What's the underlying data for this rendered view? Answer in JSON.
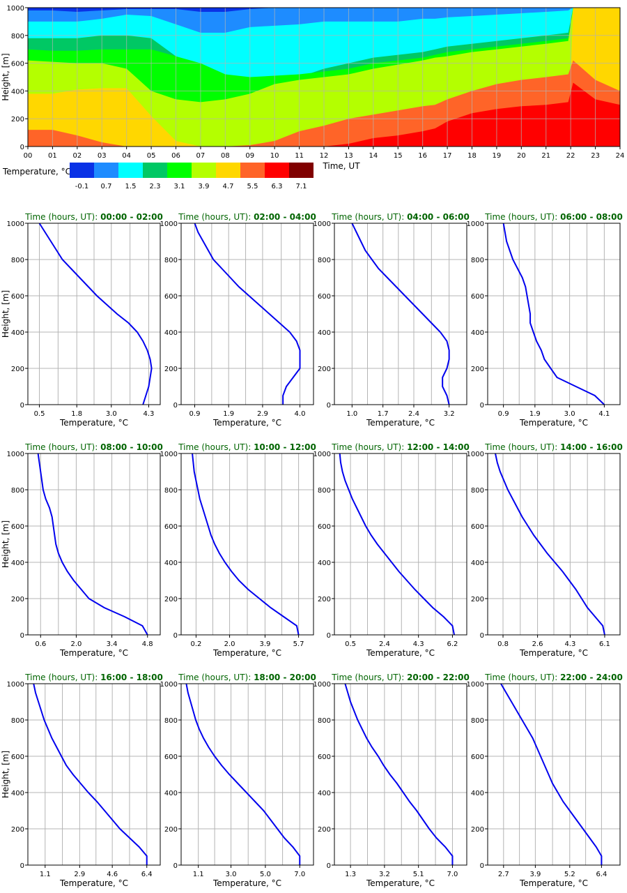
{
  "chart_data": [
    {
      "type": "heatmap",
      "title": "",
      "xlabel": "Time, UT",
      "ylabel": "Height, [m]",
      "xlim": [
        0,
        24
      ],
      "ylim": [
        0,
        1000
      ],
      "x_ticks": [
        "00",
        "01",
        "02",
        "03",
        "04",
        "05",
        "06",
        "07",
        "08",
        "09",
        "10",
        "11",
        "12",
        "13",
        "14",
        "15",
        "16",
        "17",
        "18",
        "19",
        "20",
        "21",
        "22",
        "23",
        "24"
      ],
      "y_ticks": [
        "0",
        "200",
        "400",
        "600",
        "800",
        "1000"
      ],
      "grid": true,
      "colorbar": {
        "label": "Temperature, °C",
        "tick_labels": [
          "-0.1",
          "0.7",
          "1.5",
          "2.3",
          "3.1",
          "3.9",
          "4.7",
          "5.5",
          "6.3",
          "7.1"
        ],
        "colors": [
          "#0a32e6",
          "#1e8cff",
          "#00ffff",
          "#00c864",
          "#00ff00",
          "#b4ff00",
          "#ffd700",
          "#ff6428",
          "#ff0000",
          "#800000"
        ]
      },
      "isotherm_heights_m": {
        "time_h": [
          0,
          1,
          2,
          3,
          4,
          5,
          6,
          7,
          8,
          9,
          10,
          11,
          12,
          13,
          14,
          15,
          16,
          16.5,
          17,
          18,
          19,
          20,
          21,
          21.9,
          22.1,
          23,
          24
        ],
        "t3_9": [
          380,
          380,
          410,
          420,
          420,
          220,
          40,
          0,
          0,
          0,
          0,
          0,
          0,
          0,
          0,
          0,
          0,
          0,
          0,
          0,
          0,
          0,
          0,
          0,
          1000,
          1000,
          1000
        ],
        "t4_7": [
          120,
          120,
          80,
          30,
          0,
          0,
          0,
          0,
          0,
          10,
          40,
          110,
          150,
          200,
          230,
          260,
          290,
          300,
          340,
          400,
          450,
          480,
          500,
          520,
          620,
          480,
          400
        ],
        "t5_5": [
          0,
          0,
          0,
          0,
          0,
          0,
          0,
          0,
          0,
          0,
          0,
          0,
          0,
          20,
          60,
          80,
          110,
          130,
          180,
          240,
          270,
          290,
          300,
          320,
          460,
          340,
          300
        ],
        "t6_3": [
          0,
          0,
          0,
          0,
          0,
          0,
          0,
          0,
          0,
          0,
          0,
          0,
          0,
          0,
          0,
          0,
          0,
          50,
          80,
          130,
          150,
          160,
          170,
          180,
          250,
          200,
          170
        ],
        "t3_1": [
          620,
          610,
          600,
          600,
          560,
          400,
          340,
          320,
          340,
          380,
          450,
          480,
          500,
          520,
          560,
          590,
          620,
          640,
          650,
          680,
          700,
          720,
          740,
          760,
          1000,
          1000,
          1000
        ],
        "t2_3": [
          700,
          690,
          690,
          700,
          700,
          700,
          650,
          600,
          520,
          500,
          510,
          520,
          540,
          560,
          600,
          620,
          640,
          660,
          680,
          700,
          720,
          740,
          760,
          780,
          1000,
          1000,
          1000
        ],
        "t1_5": [
          780,
          780,
          780,
          800,
          800,
          780,
          650,
          450,
          380,
          400,
          450,
          500,
          560,
          600,
          640,
          660,
          680,
          700,
          720,
          740,
          760,
          780,
          800,
          820,
          1000,
          1000,
          1000
        ],
        "t0_7": [
          900,
          900,
          900,
          920,
          950,
          940,
          880,
          820,
          820,
          860,
          870,
          880,
          900,
          900,
          900,
          900,
          920,
          920,
          930,
          940,
          950,
          960,
          970,
          980,
          1000,
          1000,
          1000
        ],
        "t_0_1": [
          980,
          980,
          970,
          980,
          990,
          990,
          990,
          970,
          970,
          990,
          1000,
          1000,
          1000,
          1000,
          1000,
          1000,
          1000,
          1000,
          1000,
          1000,
          1000,
          1000,
          1000,
          1000,
          1000,
          1000,
          1000
        ]
      }
    },
    {
      "type": "line",
      "title_prefix": "Time (hours, UT): ",
      "title_range": "00:00 - 02:00",
      "xlabel": "Temperature, °C",
      "ylabel": "Height, [m]",
      "xlim": [
        0.1,
        4.7
      ],
      "ylim": [
        0,
        1000
      ],
      "x_ticks": [
        "0.5",
        "1.8",
        "3.0",
        "4.3"
      ],
      "x_tick_values": [
        0.5,
        1.8,
        3.0,
        4.3
      ],
      "y_ticks": [
        "0",
        "200",
        "400",
        "600",
        "800",
        "1000"
      ],
      "height": [
        0,
        50,
        100,
        150,
        200,
        250,
        300,
        350,
        400,
        450,
        500,
        550,
        600,
        650,
        700,
        750,
        800,
        850,
        900,
        950,
        1000
      ],
      "temperature": [
        4.1,
        4.2,
        4.3,
        4.35,
        4.4,
        4.35,
        4.25,
        4.1,
        3.9,
        3.6,
        3.2,
        2.85,
        2.5,
        2.2,
        1.9,
        1.6,
        1.3,
        1.1,
        0.9,
        0.7,
        0.5
      ]
    },
    {
      "type": "line",
      "title_prefix": "Time (hours, UT): ",
      "title_range": "02:00 - 04:00",
      "xlabel": "Temperature, °C",
      "ylabel": "Height, [m]",
      "xlim": [
        0.5,
        4.4
      ],
      "ylim": [
        0,
        1000
      ],
      "x_ticks": [
        "0.9",
        "1.9",
        "2.9",
        "4.0"
      ],
      "x_tick_values": [
        0.9,
        1.9,
        2.9,
        4.0
      ],
      "y_ticks": [
        "0",
        "200",
        "400",
        "600",
        "800",
        "1000"
      ],
      "height": [
        0,
        50,
        100,
        150,
        200,
        250,
        300,
        350,
        400,
        450,
        500,
        550,
        600,
        650,
        700,
        750,
        800,
        850,
        900,
        950,
        1000
      ],
      "temperature": [
        3.5,
        3.5,
        3.6,
        3.8,
        4.0,
        4.0,
        4.0,
        3.9,
        3.7,
        3.4,
        3.1,
        2.8,
        2.5,
        2.2,
        1.95,
        1.7,
        1.45,
        1.3,
        1.15,
        1.0,
        0.9
      ]
    },
    {
      "type": "line",
      "title_prefix": "Time (hours, UT): ",
      "title_range": "04:00 - 06:00",
      "xlabel": "Temperature, °C",
      "ylabel": "Height, [m]",
      "xlim": [
        0.6,
        3.6
      ],
      "ylim": [
        0,
        1000
      ],
      "x_ticks": [
        "1.0",
        "1.7",
        "2.4",
        "3.2"
      ],
      "x_tick_values": [
        1.0,
        1.7,
        2.4,
        3.2
      ],
      "y_ticks": [
        "0",
        "200",
        "400",
        "600",
        "800",
        "1000"
      ],
      "height": [
        0,
        50,
        100,
        150,
        200,
        250,
        300,
        350,
        400,
        450,
        500,
        550,
        600,
        650,
        700,
        750,
        800,
        850,
        900,
        950,
        1000
      ],
      "temperature": [
        3.2,
        3.15,
        3.05,
        3.05,
        3.15,
        3.2,
        3.2,
        3.15,
        3.0,
        2.8,
        2.6,
        2.4,
        2.2,
        2.0,
        1.8,
        1.6,
        1.45,
        1.3,
        1.2,
        1.1,
        1.0
      ]
    },
    {
      "type": "line",
      "title_prefix": "Time (hours, UT): ",
      "title_range": "06:00 - 08:00",
      "xlabel": "Temperature, °C",
      "ylabel": "Height, [m]",
      "xlim": [
        0.4,
        4.6
      ],
      "ylim": [
        0,
        1000
      ],
      "x_ticks": [
        "0.9",
        "1.9",
        "3.0",
        "4.1"
      ],
      "x_tick_values": [
        0.9,
        1.9,
        3.0,
        4.1
      ],
      "y_ticks": [
        "0",
        "200",
        "400",
        "600",
        "800",
        "1000"
      ],
      "height": [
        0,
        50,
        100,
        150,
        200,
        250,
        300,
        350,
        400,
        450,
        500,
        550,
        600,
        650,
        700,
        750,
        800,
        850,
        900,
        950,
        1000
      ],
      "temperature": [
        4.1,
        3.8,
        3.2,
        2.6,
        2.4,
        2.2,
        2.1,
        1.95,
        1.85,
        1.75,
        1.75,
        1.7,
        1.65,
        1.6,
        1.5,
        1.35,
        1.2,
        1.1,
        1.0,
        0.95,
        0.9
      ]
    },
    {
      "type": "line",
      "title_prefix": "Time (hours, UT): ",
      "title_range": "08:00 - 10:00",
      "xlabel": "Temperature, °C",
      "ylabel": "Height, [m]",
      "xlim": [
        0.1,
        5.3
      ],
      "ylim": [
        0,
        1000
      ],
      "x_ticks": [
        "0.6",
        "2.0",
        "3.4",
        "4.8"
      ],
      "x_tick_values": [
        0.6,
        2.0,
        3.4,
        4.8
      ],
      "y_ticks": [
        "0",
        "200",
        "400",
        "600",
        "800",
        "1000"
      ],
      "height": [
        0,
        50,
        100,
        150,
        200,
        250,
        300,
        350,
        400,
        450,
        500,
        550,
        600,
        650,
        700,
        750,
        800,
        850,
        900,
        950,
        1000
      ],
      "temperature": [
        4.8,
        4.6,
        3.9,
        3.1,
        2.5,
        2.2,
        1.9,
        1.65,
        1.45,
        1.3,
        1.2,
        1.15,
        1.1,
        1.05,
        0.95,
        0.8,
        0.7,
        0.65,
        0.6,
        0.55,
        0.5
      ]
    },
    {
      "type": "line",
      "title_prefix": "Time (hours, UT): ",
      "title_range": "10:00 - 12:00",
      "xlabel": "Temperature, °C",
      "ylabel": "Height, [m]",
      "xlim": [
        -0.6,
        6.5
      ],
      "ylim": [
        0,
        1000
      ],
      "x_ticks": [
        "0.2",
        "2.0",
        "3.9",
        "5.7"
      ],
      "x_tick_values": [
        0.2,
        2.0,
        3.9,
        5.7
      ],
      "y_ticks": [
        "0",
        "200",
        "400",
        "600",
        "800",
        "1000"
      ],
      "height": [
        0,
        50,
        100,
        150,
        200,
        250,
        300,
        350,
        400,
        450,
        500,
        550,
        600,
        650,
        700,
        750,
        800,
        850,
        900,
        950,
        1000
      ],
      "temperature": [
        5.7,
        5.6,
        4.9,
        4.2,
        3.6,
        3.0,
        2.5,
        2.1,
        1.75,
        1.45,
        1.2,
        1.0,
        0.85,
        0.7,
        0.55,
        0.4,
        0.3,
        0.2,
        0.1,
        0.05,
        0.0
      ]
    },
    {
      "type": "line",
      "title_prefix": "Time (hours, UT): ",
      "title_range": "12:00 - 14:00",
      "xlabel": "Temperature, °C",
      "ylabel": "Height, [m]",
      "xlim": [
        -0.4,
        7.0
      ],
      "ylim": [
        0,
        1000
      ],
      "x_ticks": [
        "0.5",
        "2.4",
        "4.3",
        "6.2"
      ],
      "x_tick_values": [
        0.5,
        2.4,
        4.3,
        6.2
      ],
      "y_ticks": [
        "0",
        "200",
        "400",
        "600",
        "800",
        "1000"
      ],
      "height": [
        0,
        50,
        100,
        150,
        200,
        250,
        300,
        350,
        400,
        450,
        500,
        550,
        600,
        650,
        700,
        750,
        800,
        850,
        900,
        950,
        1000
      ],
      "temperature": [
        6.3,
        6.2,
        5.7,
        5.1,
        4.6,
        4.1,
        3.65,
        3.2,
        2.8,
        2.4,
        2.0,
        1.65,
        1.35,
        1.1,
        0.85,
        0.6,
        0.4,
        0.2,
        0.05,
        -0.05,
        -0.1
      ]
    },
    {
      "type": "line",
      "title_prefix": "Time (hours, UT): ",
      "title_range": "14:00 - 16:00",
      "xlabel": "Temperature, °C",
      "ylabel": "Height, [m]",
      "xlim": [
        0.0,
        6.9
      ],
      "ylim": [
        0,
        1000
      ],
      "x_ticks": [
        "0.8",
        "2.6",
        "4.3",
        "6.1"
      ],
      "x_tick_values": [
        0.8,
        2.6,
        4.3,
        6.1
      ],
      "y_ticks": [
        "0",
        "200",
        "400",
        "600",
        "800",
        "1000"
      ],
      "height": [
        0,
        50,
        100,
        150,
        200,
        250,
        300,
        350,
        400,
        450,
        500,
        550,
        600,
        650,
        700,
        750,
        800,
        850,
        900,
        950,
        1000
      ],
      "temperature": [
        6.1,
        6.0,
        5.6,
        5.2,
        4.9,
        4.6,
        4.25,
        3.9,
        3.5,
        3.1,
        2.75,
        2.4,
        2.1,
        1.8,
        1.55,
        1.3,
        1.05,
        0.85,
        0.65,
        0.5,
        0.4
      ]
    },
    {
      "type": "line",
      "title_prefix": "Time (hours, UT): ",
      "title_range": "16:00 - 18:00",
      "xlabel": "Temperature, °C",
      "ylabel": "Height, [m]",
      "xlim": [
        0.2,
        7.1
      ],
      "ylim": [
        0,
        1000
      ],
      "x_ticks": [
        "1.1",
        "2.9",
        "4.6",
        "6.4"
      ],
      "x_tick_values": [
        1.1,
        2.9,
        4.6,
        6.4
      ],
      "y_ticks": [
        "0",
        "200",
        "400",
        "600",
        "800",
        "1000"
      ],
      "height": [
        0,
        50,
        100,
        150,
        200,
        250,
        300,
        350,
        400,
        450,
        500,
        550,
        600,
        650,
        700,
        750,
        800,
        850,
        900,
        950,
        1000
      ],
      "temperature": [
        6.4,
        6.4,
        6.0,
        5.5,
        5.0,
        4.6,
        4.2,
        3.8,
        3.35,
        2.95,
        2.55,
        2.2,
        1.95,
        1.7,
        1.45,
        1.25,
        1.05,
        0.9,
        0.75,
        0.6,
        0.5
      ]
    },
    {
      "type": "line",
      "title_prefix": "Time (hours, UT): ",
      "title_range": "18:00 - 20:00",
      "xlabel": "Temperature, °C",
      "ylabel": "Height, [m]",
      "xlim": [
        0.1,
        7.8
      ],
      "ylim": [
        0,
        1000
      ],
      "x_ticks": [
        "1.1",
        "3.0",
        "5.0",
        "7.0"
      ],
      "x_tick_values": [
        1.1,
        3.0,
        5.0,
        7.0
      ],
      "y_ticks": [
        "0",
        "200",
        "400",
        "600",
        "800",
        "1000"
      ],
      "height": [
        0,
        50,
        100,
        150,
        200,
        250,
        300,
        350,
        400,
        450,
        500,
        550,
        600,
        650,
        700,
        750,
        800,
        850,
        900,
        950,
        1000
      ],
      "temperature": [
        7.0,
        7.0,
        6.6,
        6.1,
        5.7,
        5.3,
        4.9,
        4.4,
        3.9,
        3.4,
        2.9,
        2.45,
        2.05,
        1.7,
        1.4,
        1.15,
        0.95,
        0.8,
        0.65,
        0.5,
        0.4
      ]
    },
    {
      "type": "line",
      "title_prefix": "Time (hours, UT): ",
      "title_range": "20:00 - 22:00",
      "xlabel": "Temperature, °C",
      "ylabel": "Height, [m]",
      "xlim": [
        0.4,
        7.8
      ],
      "ylim": [
        0,
        1000
      ],
      "x_ticks": [
        "1.3",
        "3.2",
        "5.1",
        "7.0"
      ],
      "x_tick_values": [
        1.3,
        3.2,
        5.1,
        7.0
      ],
      "y_ticks": [
        "0",
        "200",
        "400",
        "600",
        "800",
        "1000"
      ],
      "height": [
        0,
        50,
        100,
        150,
        200,
        250,
        300,
        350,
        400,
        450,
        500,
        550,
        600,
        650,
        700,
        750,
        800,
        850,
        900,
        950,
        1000
      ],
      "temperature": [
        7.0,
        7.0,
        6.6,
        6.1,
        5.7,
        5.35,
        5.0,
        4.6,
        4.25,
        3.9,
        3.5,
        3.15,
        2.85,
        2.5,
        2.2,
        1.95,
        1.7,
        1.5,
        1.3,
        1.15,
        1.0
      ]
    },
    {
      "type": "line",
      "title_prefix": "Time (hours, UT): ",
      "title_range": "22:00 - 24:00",
      "xlabel": "Temperature, °C",
      "ylabel": "Height, [m]",
      "xlim": [
        2.1,
        7.1
      ],
      "ylim": [
        0,
        1000
      ],
      "x_ticks": [
        "2.7",
        "3.9",
        "5.2",
        "6.4"
      ],
      "x_tick_values": [
        2.7,
        3.9,
        5.2,
        6.4
      ],
      "y_ticks": [
        "0",
        "200",
        "400",
        "600",
        "800",
        "1000"
      ],
      "height": [
        0,
        50,
        100,
        150,
        200,
        250,
        300,
        350,
        400,
        450,
        500,
        550,
        600,
        650,
        700,
        750,
        800,
        850,
        900,
        950,
        1000
      ],
      "temperature": [
        6.4,
        6.4,
        6.2,
        5.95,
        5.7,
        5.45,
        5.2,
        4.95,
        4.75,
        4.55,
        4.4,
        4.25,
        4.1,
        3.95,
        3.8,
        3.6,
        3.4,
        3.2,
        3.0,
        2.8,
        2.6
      ]
    }
  ]
}
